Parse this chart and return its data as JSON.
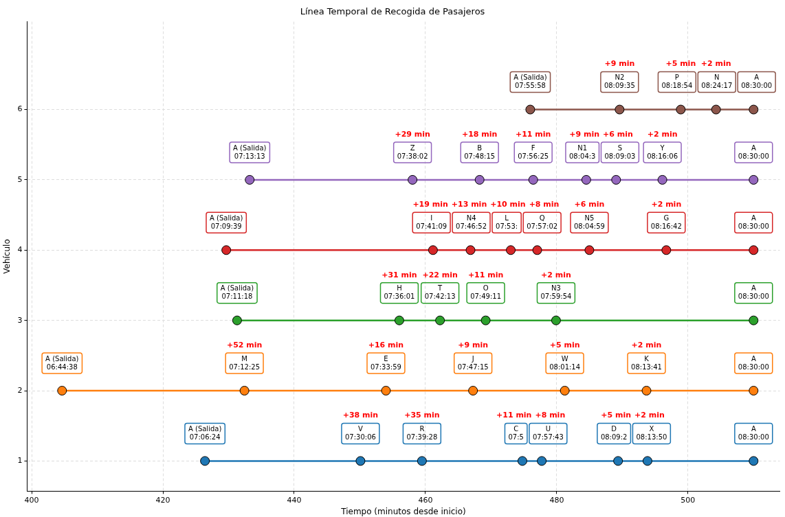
{
  "chart_data": {
    "type": "line",
    "title": "Línea Temporal de Recogida de Pasajeros",
    "xlabel": "Tiempo (minutos desde inicio)",
    "ylabel": "Vehículo",
    "xlim": [
      399.3,
      514
    ],
    "xticks": [
      400,
      420,
      440,
      460,
      480,
      500
    ],
    "ylim": [
      0.57,
      7.25
    ],
    "yticks": [
      1,
      2,
      3,
      4,
      5,
      6
    ],
    "grid": true,
    "marker": "circle",
    "line_style": "solid",
    "series": [
      {
        "color": "#1f77b4",
        "x": [
          426.4,
          450.1,
          459.47,
          474.77,
          477.72,
          489.35,
          493.83,
          510
        ],
        "values": [
          1,
          1,
          1,
          1,
          1,
          1,
          1,
          1
        ]
      },
      {
        "color": "#ff7f0e",
        "x": [
          404.63,
          432.42,
          453.98,
          467.25,
          481.23,
          493.68,
          510
        ],
        "values": [
          2,
          2,
          2,
          2,
          2,
          2,
          2
        ]
      },
      {
        "color": "#2ca02c",
        "x": [
          431.3,
          456.02,
          462.22,
          469.18,
          479.9,
          510
        ],
        "values": [
          3,
          3,
          3,
          3,
          3,
          3
        ]
      },
      {
        "color": "#d62728",
        "x": [
          429.65,
          461.15,
          466.87,
          473.0,
          477.03,
          484.98,
          496.7,
          510
        ],
        "values": [
          4,
          4,
          4,
          4,
          4,
          4,
          4,
          4
        ]
      },
      {
        "color": "#9467bd",
        "x": [
          433.22,
          458.03,
          468.25,
          476.42,
          484.5,
          489.05,
          496.1,
          510
        ],
        "values": [
          5,
          5,
          5,
          5,
          5,
          5,
          5,
          5
        ]
      },
      {
        "color": "#8c564b",
        "x": [
          475.97,
          489.58,
          498.9,
          504.28,
          510
        ],
        "values": [
          6,
          6,
          6,
          6,
          6
        ]
      }
    ],
    "annotations": [
      "A (Salida)\n07:06:24",
      "V\n07:30:06",
      "R\n07:39:28",
      "C\n07:5",
      "U\n07:57:43",
      "D\n08:09:2",
      "X\n08:13:50",
      "A\n08:30:00",
      "+38 min",
      "+35 min",
      "+11 min",
      "+8 min",
      "+5 min",
      "+2 min",
      "A (Salida)\n06:44:38",
      "M\n07:12:25",
      "E\n07:33:59",
      "J\n07:47:15",
      "W\n08:01:14",
      "K\n08:13:41",
      "A\n08:30:00",
      "+52 min",
      "+16 min",
      "+9 min",
      "+5 min",
      "+2 min",
      "A (Salida)\n07:11:18",
      "H\n07:36:01",
      "T\n07:42:13",
      "O\n07:49:11",
      "N3\n07:59:54",
      "A\n08:30:00",
      "+31 min",
      "+22 min",
      "+11 min",
      "+2 min",
      "A (Salida)\n07:09:39",
      "I\n07:41:09",
      "N4\n07:46:52",
      "L\n07:53:",
      "Q\n07:57:02",
      "N5\n08:04:59",
      "G\n08:16:42",
      "A\n08:30:00",
      "+19 min",
      "+13 min",
      "+10 min",
      "+8 min",
      "+6 min",
      "+2 min",
      "A (Salida)\n07:13:13",
      "Z\n07:38:02",
      "B\n07:48:15",
      "F\n07:56:25",
      "N1\n08:04:3",
      "S\n08:09:03",
      "Y\n08:16:06",
      "A\n08:30:00",
      "+29 min",
      "+18 min",
      "+11 min",
      "+9 min",
      "+6 min",
      "+2 min",
      "A (Salida)\n07:55:58",
      "N2\n08:09:35",
      "P\n08:18:54",
      "N\n08:24:17",
      "A\n08:30:00",
      "+9 min",
      "+5 min",
      "+2 min"
    ]
  }
}
